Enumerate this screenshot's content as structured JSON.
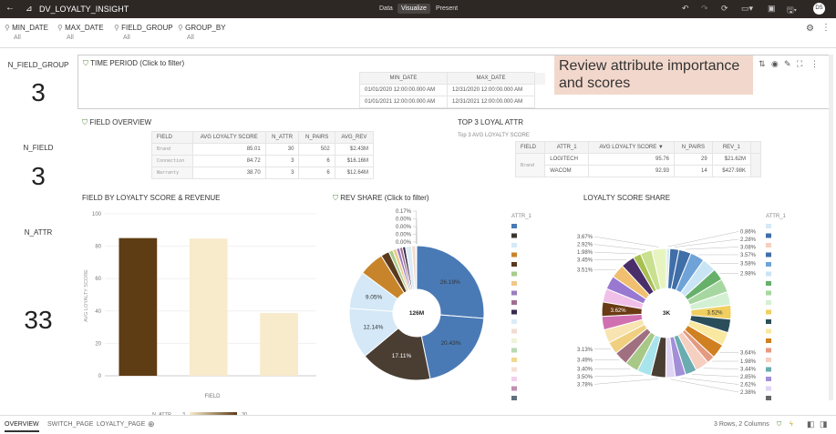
{
  "header": {
    "title": "DV_LOYALTY_INSIGHT",
    "tabs": [
      "Data",
      "Visualize",
      "Present"
    ],
    "active_tab": "Visualize",
    "avatar": "DS"
  },
  "filters": [
    {
      "label": "MIN_DATE",
      "value": "All"
    },
    {
      "label": "MAX_DATE",
      "value": "All"
    },
    {
      "label": "FIELD_GROUP",
      "value": "All"
    },
    {
      "label": "GROUP_BY",
      "value": "All"
    }
  ],
  "kpis": [
    {
      "label": "N_FIELD_GROUP",
      "value": "3"
    },
    {
      "label": "N_FIELD",
      "value": "3"
    },
    {
      "label": "N_ATTR",
      "value": "33"
    }
  ],
  "time_period": {
    "title": "TIME PERIOD (Click to filter)",
    "columns": [
      "MIN_DATE",
      "MAX_DATE"
    ],
    "rows": [
      [
        "01/01/2020 12:00:00.000 AM",
        "12/31/2020 12:00:00.000 AM"
      ],
      [
        "01/01/2021 12:00:00.000 AM",
        "12/31/2021 12:00:00.000 AM"
      ]
    ]
  },
  "callout": "Review attribute importance and scores",
  "field_overview": {
    "title": "FIELD OVERVIEW",
    "columns": [
      "FIELD",
      "AVG LOYALTY SCORE",
      "N_ATTR",
      "N_PAIRS",
      "AVG_REV"
    ],
    "rows": [
      [
        "Brand",
        "85.01",
        "30",
        "502",
        "$2.43M"
      ],
      [
        "Connection",
        "84.72",
        "3",
        "6",
        "$16.16M"
      ],
      [
        "Warranty",
        "38.70",
        "3",
        "6",
        "$12.64M"
      ]
    ]
  },
  "top3": {
    "title": "TOP 3 LOYAL ATTR",
    "subtitle": "Top 3 AVG LOYALTY SCORE",
    "columns": [
      "FIELD",
      "ATTR_1",
      "AVG LOYALTY SCORE ▼",
      "N_PAIRS",
      "REV_1"
    ],
    "field": "Brand",
    "rows": [
      [
        "LOGITECH",
        "95.76",
        "29",
        "$21.62M"
      ],
      [
        "WACOM",
        "92.93",
        "14",
        "$427.98K"
      ]
    ]
  },
  "chart_data": [
    {
      "type": "bar",
      "title": "FIELD BY LOYALTY SCORE & REVENUE",
      "xlabel": "FIELD",
      "ylabel": "AVG LOYALTY SCORE",
      "ylim": [
        0,
        100
      ],
      "yticks": [
        0,
        20,
        40,
        60,
        80,
        100
      ],
      "values": [
        85.01,
        84.72,
        38.7
      ],
      "color_by": {
        "label": "N_ATTR",
        "min": "3",
        "max": "30",
        "values": [
          30,
          3,
          3
        ]
      },
      "colors": [
        "#5e3c14",
        "#f8ebcc",
        "#f8ebcc"
      ],
      "grid": true
    },
    {
      "type": "pie",
      "title": "REV SHARE (Click to filter)",
      "center_label": "126M",
      "legend_title": "ATTR_1",
      "legend": "right",
      "values": [
        26.19,
        20.43,
        17.11,
        12.14,
        9.05,
        6.0,
        2.0,
        1.0,
        0.9,
        0.8,
        0.7,
        0.7,
        1.5,
        1.0,
        0.17,
        0.0,
        0.0,
        0.0,
        0.0
      ],
      "labels": [
        "26.19%",
        "20.43%",
        "17.11%",
        "12.14%",
        "9.05%",
        "",
        "",
        "",
        "",
        "",
        "",
        "",
        "",
        "",
        "0.17%",
        "0.00%",
        "0.00%",
        "0.00%",
        "0.00%"
      ],
      "colors": [
        "#4a7ab5",
        "#4a7ab5",
        "#4a3e33",
        "#d4e8f7",
        "#d4e8f7",
        "#c8842a",
        "#5a3a1e",
        "#a8cc8c",
        "#f0c98a",
        "#9a7fbf",
        "#a07090",
        "#3a2a50",
        "#dcecf5",
        "#f2dcd0",
        "#eef5d8",
        "#b8d8b0",
        "#f0d890",
        "#f5e0d8",
        "#f0d0ec"
      ],
      "legend_colors": [
        "#4a7ab5",
        "#3b3530",
        "#d6e9f7",
        "#c8842a",
        "#5a3a1e",
        "#a8cc8c",
        "#f0c98a",
        "#9a7fbf",
        "#a07090",
        "#3a2a50",
        "#dcecf5",
        "#f2dcd0",
        "#eef5d8",
        "#b8d8b0",
        "#f0d890",
        "#f5e0d8",
        "#f0d0ec",
        "#c090b0",
        "#607080"
      ]
    },
    {
      "type": "pie",
      "title": "LOYALTY SCORE SHARE",
      "center_label": "3K",
      "legend_title": "ATTR_1",
      "legend": "right",
      "values": [
        0.86,
        2.28,
        3.08,
        3.57,
        3.58,
        2.98,
        3.4,
        3.4,
        3.52,
        3.4,
        3.4,
        3.64,
        1.98,
        3.44,
        2.85,
        2.62,
        2.38,
        3.78,
        3.5,
        3.4,
        3.49,
        3.13,
        3.4,
        3.4,
        3.62,
        3.4,
        3.4,
        3.51,
        3.45,
        1.98,
        2.92,
        3.67
      ],
      "labels": [
        "0.86%",
        "2.28%",
        "3.08%",
        "3.57%",
        "3.58%",
        "2.98%",
        "",
        "",
        "3.52%",
        "",
        "",
        "3.64%",
        "1.98%",
        "3.44%",
        "2.85%",
        "2.62%",
        "2.38%",
        "3.78%",
        "3.50%",
        "3.40%",
        "3.49%",
        "3.13%",
        "",
        "",
        "3.62%",
        "",
        "",
        "3.51%",
        "3.45%",
        "1.98%",
        "2.92%",
        "3.67%"
      ],
      "colors": [
        "#d6e9f7",
        "#3f6ea8",
        "#3f6ea8",
        "#6fa3d8",
        "#c9e5f5",
        "#66b06a",
        "#a7d7a0",
        "#d3f0d3",
        "#f0cf60",
        "#2a4f5a",
        "#f8e8a0",
        "#d08020",
        "#e49a80",
        "#f5cfc0",
        "#6aacb0",
        "#a28fd8",
        "#e0d4f5",
        "#4a3e33",
        "#a8e4ec",
        "#a8c888",
        "#a07080",
        "#f0d080",
        "#f8e4b0",
        "#d070b0",
        "#6a3a14",
        "#f0c0e8",
        "#9878d0",
        "#f0c070",
        "#4a2e6a",
        "#a8c050",
        "#c8e090",
        "#e8f4c0"
      ],
      "legend_colors": [
        "#d6e9f7",
        "#3f6ea8",
        "#f5cfc0",
        "#3f6ea8",
        "#6fa3d8",
        "#c9e5f5",
        "#66b06a",
        "#a7d7a0",
        "#d3f0d3",
        "#f0cf60",
        "#2a4f5a",
        "#f8e8a0",
        "#d08020",
        "#e49a80",
        "#f5cfc0",
        "#6aacb0",
        "#a28fd8",
        "#e0d4f5",
        "#666666"
      ]
    }
  ],
  "bottom": {
    "tabs": [
      "OVERVIEW",
      "SWITCH_PAGE",
      "LOYALTY_PAGE"
    ],
    "active": "OVERVIEW",
    "status": "3 Rows, 2 Columns"
  }
}
